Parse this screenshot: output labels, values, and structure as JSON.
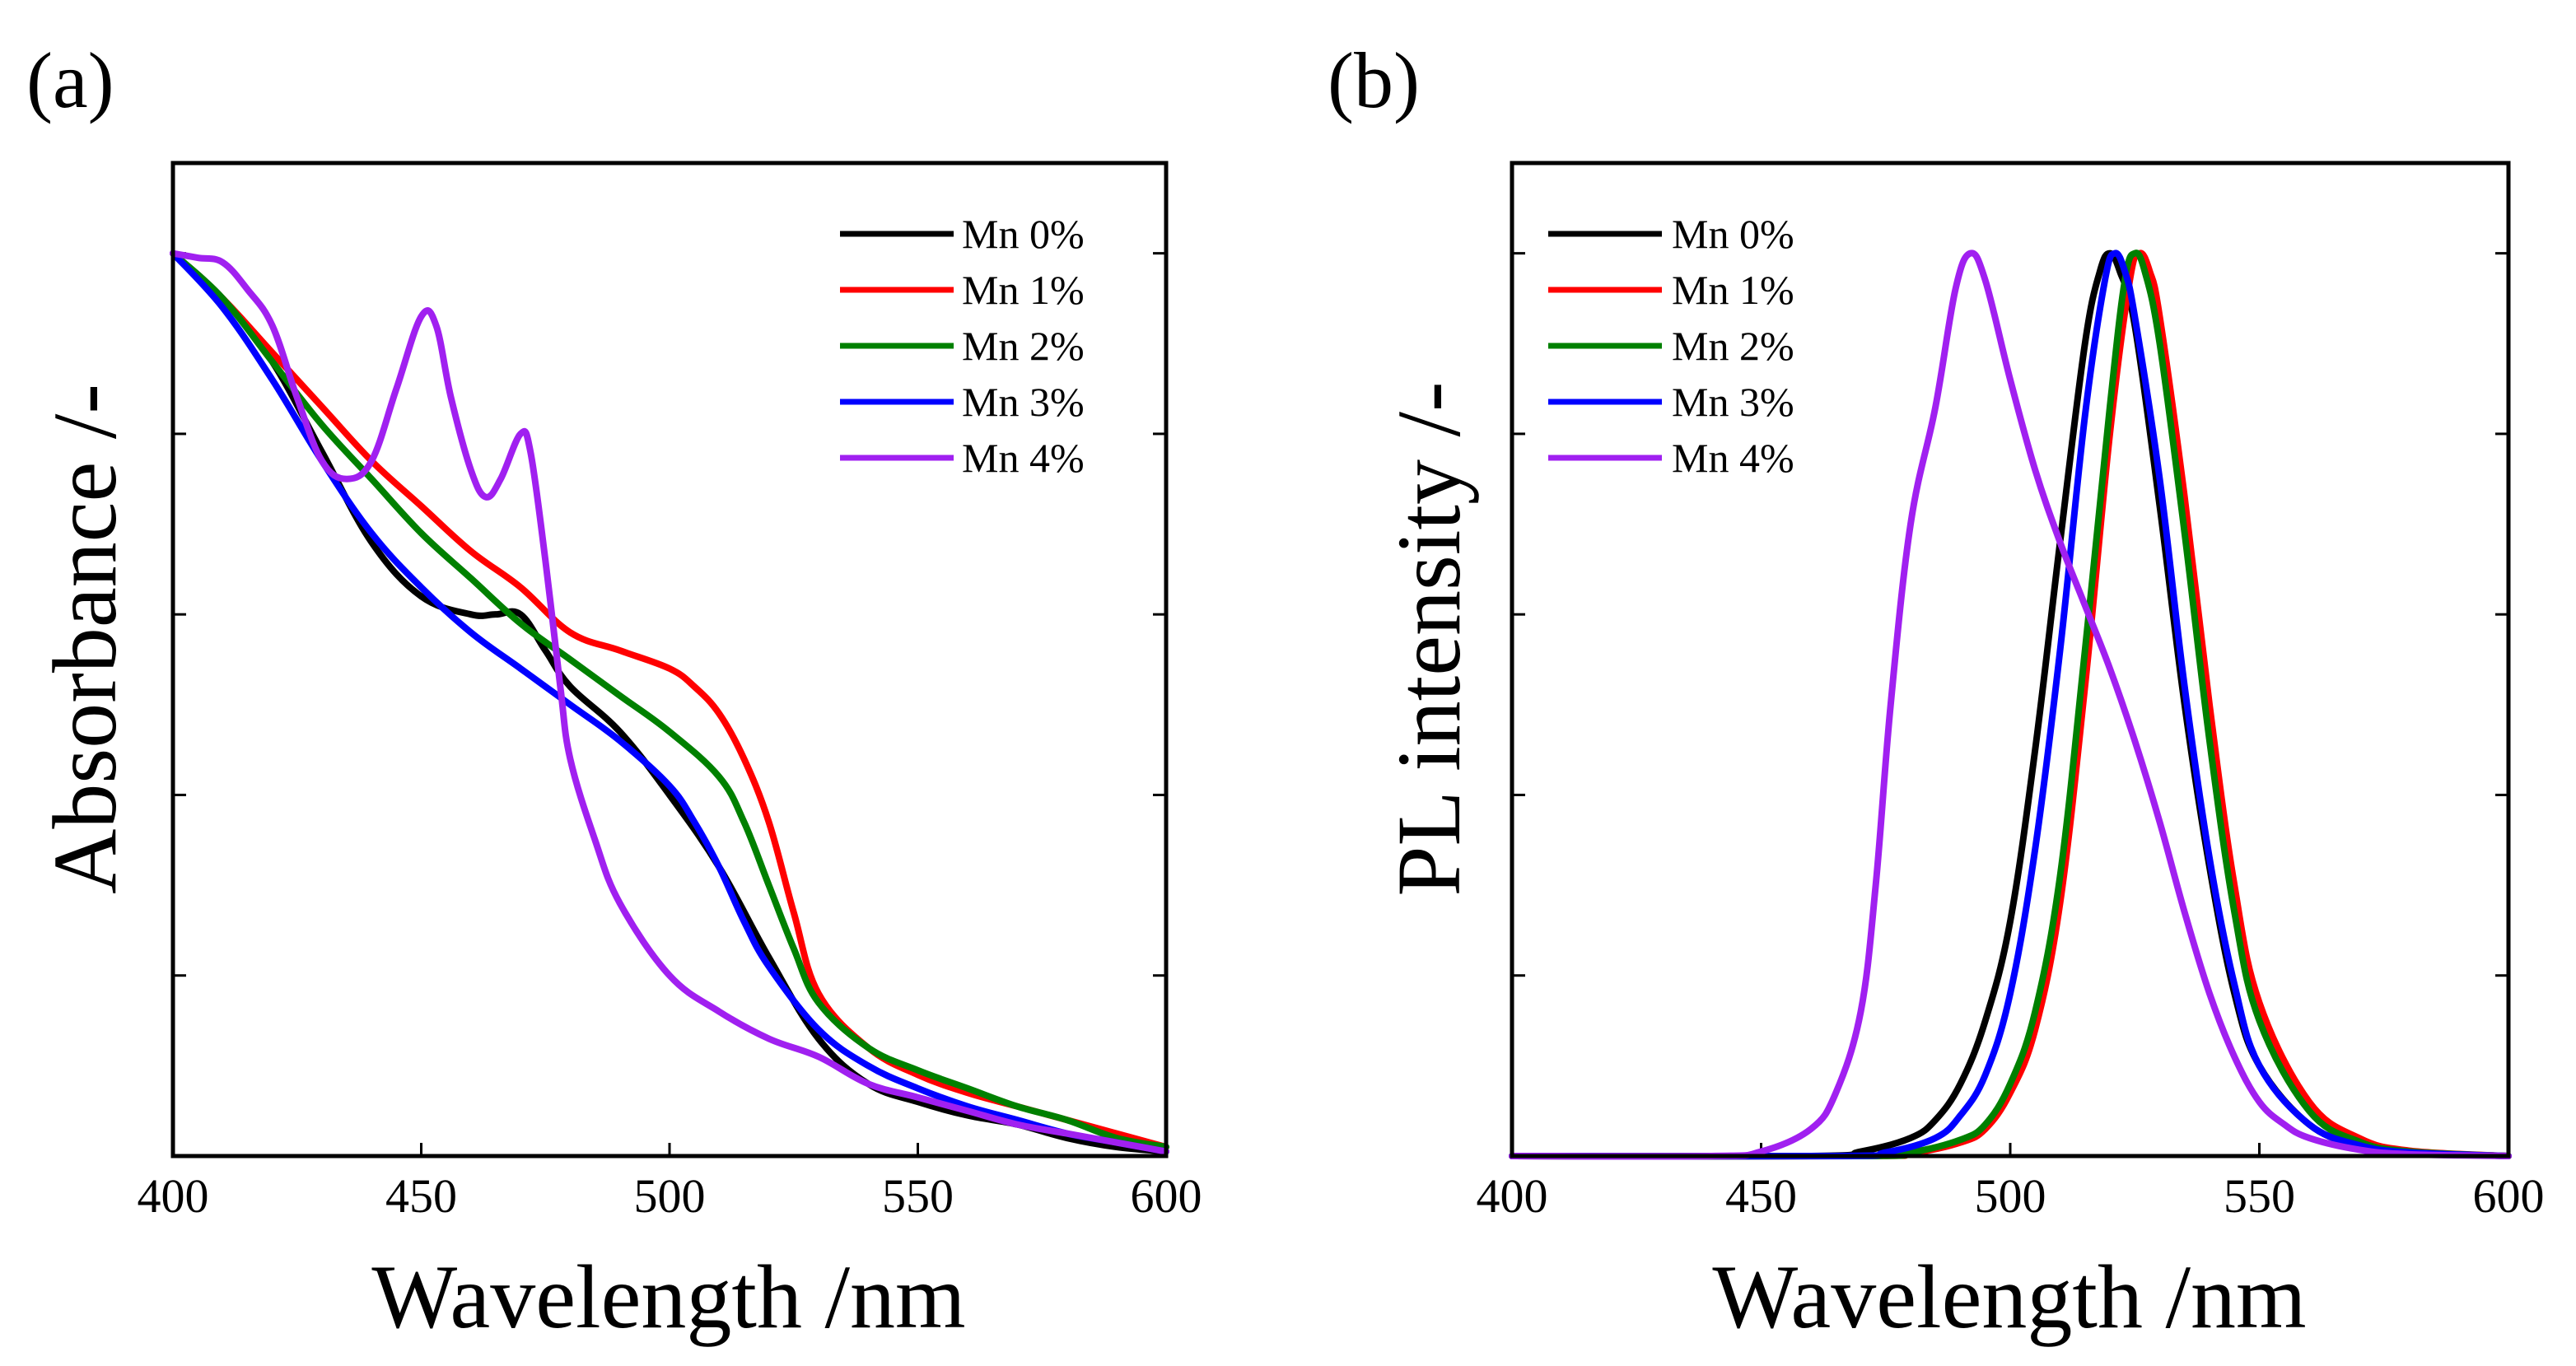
{
  "chart_data": [
    {
      "type": "line",
      "panel_label": "(a)",
      "title": "",
      "xlabel": "Wavelength /nm",
      "ylabel": "Absorbance /-",
      "xlim": [
        400,
        600
      ],
      "ylim": [
        0,
        1.1
      ],
      "xticks": [
        400,
        450,
        500,
        550,
        600
      ],
      "xtick_labels": [
        "400",
        "450",
        "500",
        "550",
        "600"
      ],
      "yticks": [
        0.2,
        0.4,
        0.6,
        0.8,
        1.0
      ],
      "ytick_labels": [],
      "grid": false,
      "legend_position": "top-right",
      "series": [
        {
          "name": "Mn 0%",
          "color": "#000000",
          "x": [
            400,
            410,
            420,
            430,
            440,
            450,
            460,
            465,
            470,
            475,
            480,
            490,
            500,
            510,
            520,
            530,
            540,
            550,
            560,
            570,
            580,
            590,
            600
          ],
          "y": [
            1.0,
            0.95,
            0.88,
            0.78,
            0.68,
            0.62,
            0.6,
            0.6,
            0.6,
            0.56,
            0.52,
            0.47,
            0.4,
            0.32,
            0.22,
            0.13,
            0.08,
            0.06,
            0.045,
            0.035,
            0.02,
            0.01,
            0.005
          ]
        },
        {
          "name": "Mn 1%",
          "color": "#ff0000",
          "x": [
            400,
            410,
            420,
            430,
            440,
            450,
            460,
            470,
            480,
            490,
            500,
            505,
            510,
            515,
            520,
            525,
            530,
            540,
            550,
            560,
            570,
            580,
            590,
            600
          ],
          "y": [
            1.0,
            0.95,
            0.89,
            0.83,
            0.77,
            0.72,
            0.67,
            0.63,
            0.58,
            0.56,
            0.54,
            0.52,
            0.49,
            0.44,
            0.37,
            0.27,
            0.18,
            0.12,
            0.09,
            0.07,
            0.055,
            0.04,
            0.025,
            0.01
          ]
        },
        {
          "name": "Mn 2%",
          "color": "#008000",
          "x": [
            400,
            410,
            420,
            430,
            440,
            450,
            460,
            470,
            480,
            490,
            500,
            510,
            515,
            520,
            525,
            530,
            540,
            550,
            560,
            570,
            580,
            590,
            600
          ],
          "y": [
            1.0,
            0.95,
            0.88,
            0.81,
            0.75,
            0.69,
            0.64,
            0.59,
            0.55,
            0.51,
            0.47,
            0.42,
            0.37,
            0.3,
            0.23,
            0.17,
            0.12,
            0.095,
            0.075,
            0.055,
            0.04,
            0.02,
            0.01
          ]
        },
        {
          "name": "Mn 3%",
          "color": "#0000ff",
          "x": [
            400,
            410,
            420,
            430,
            440,
            450,
            460,
            470,
            480,
            490,
            500,
            505,
            510,
            515,
            520,
            530,
            540,
            550,
            560,
            570,
            580,
            590,
            600
          ],
          "y": [
            1.0,
            0.94,
            0.86,
            0.77,
            0.69,
            0.63,
            0.58,
            0.54,
            0.5,
            0.46,
            0.41,
            0.37,
            0.32,
            0.26,
            0.21,
            0.14,
            0.1,
            0.075,
            0.055,
            0.04,
            0.025,
            0.015,
            0.005
          ]
        },
        {
          "name": "Mn 4%",
          "color": "#a020f0",
          "x": [
            400,
            405,
            410,
            415,
            420,
            425,
            430,
            435,
            440,
            445,
            450,
            453,
            456,
            460,
            463,
            466,
            470,
            472,
            475,
            478,
            480,
            485,
            490,
            500,
            510,
            520,
            530,
            540,
            550,
            560,
            570,
            580,
            590,
            600
          ],
          "y": [
            1.0,
            0.995,
            0.99,
            0.96,
            0.92,
            0.84,
            0.77,
            0.75,
            0.77,
            0.85,
            0.93,
            0.92,
            0.84,
            0.76,
            0.73,
            0.75,
            0.8,
            0.78,
            0.66,
            0.52,
            0.44,
            0.35,
            0.28,
            0.2,
            0.16,
            0.13,
            0.11,
            0.08,
            0.065,
            0.05,
            0.035,
            0.025,
            0.015,
            0.005
          ]
        }
      ]
    },
    {
      "type": "line",
      "panel_label": "(b)",
      "title": "",
      "xlabel": "Wavelength /nm",
      "ylabel": "PL intensity /-",
      "xlim": [
        400,
        600
      ],
      "ylim": [
        0,
        1.1
      ],
      "xticks": [
        400,
        450,
        500,
        550,
        600
      ],
      "xtick_labels": [
        "400",
        "450",
        "500",
        "550",
        "600"
      ],
      "yticks": [
        0.2,
        0.4,
        0.6,
        0.8,
        1.0
      ],
      "ytick_labels": [],
      "grid": false,
      "legend_position": "top-left",
      "series": [
        {
          "name": "Mn 0%",
          "color": "#000000",
          "x": [
            400,
            460,
            470,
            480,
            485,
            490,
            495,
            500,
            505,
            510,
            515,
            518,
            520,
            522,
            525,
            530,
            535,
            540,
            545,
            550,
            560,
            570,
            580,
            600
          ],
          "y": [
            0,
            0,
            0.005,
            0.02,
            0.04,
            0.08,
            0.15,
            0.26,
            0.45,
            0.68,
            0.9,
            0.98,
            1.0,
            0.98,
            0.92,
            0.72,
            0.5,
            0.32,
            0.18,
            0.1,
            0.035,
            0.012,
            0.004,
            0
          ]
        },
        {
          "name": "Mn 1%",
          "color": "#ff0000",
          "x": [
            400,
            470,
            480,
            490,
            495,
            500,
            505,
            510,
            515,
            520,
            524,
            526,
            528,
            530,
            535,
            540,
            545,
            550,
            560,
            570,
            580,
            600
          ],
          "y": [
            0,
            0,
            0.003,
            0.015,
            0.03,
            0.07,
            0.14,
            0.28,
            0.52,
            0.8,
            0.97,
            1.0,
            0.98,
            0.93,
            0.73,
            0.5,
            0.3,
            0.17,
            0.06,
            0.02,
            0.006,
            0
          ]
        },
        {
          "name": "Mn 2%",
          "color": "#008000",
          "x": [
            400,
            470,
            480,
            490,
            495,
            500,
            505,
            510,
            515,
            520,
            523,
            525,
            527,
            530,
            535,
            540,
            545,
            550,
            560,
            570,
            580,
            600
          ],
          "y": [
            0,
            0,
            0.004,
            0.018,
            0.035,
            0.08,
            0.16,
            0.31,
            0.56,
            0.83,
            0.97,
            1.0,
            0.98,
            0.9,
            0.69,
            0.46,
            0.27,
            0.15,
            0.05,
            0.016,
            0.005,
            0
          ]
        },
        {
          "name": "Mn 3%",
          "color": "#0000ff",
          "x": [
            400,
            465,
            475,
            485,
            490,
            495,
            500,
            505,
            510,
            515,
            519,
            521,
            523,
            525,
            530,
            535,
            540,
            545,
            550,
            560,
            570,
            580,
            600
          ],
          "y": [
            0,
            0,
            0.004,
            0.02,
            0.045,
            0.09,
            0.18,
            0.34,
            0.56,
            0.82,
            0.97,
            1.0,
            0.98,
            0.93,
            0.75,
            0.52,
            0.33,
            0.19,
            0.1,
            0.035,
            0.012,
            0.004,
            0
          ]
        },
        {
          "name": "Mn 4%",
          "color": "#a020f0",
          "x": [
            400,
            440,
            450,
            460,
            465,
            470,
            473,
            476,
            480,
            485,
            489,
            492,
            495,
            500,
            505,
            510,
            515,
            520,
            525,
            530,
            535,
            540,
            545,
            550,
            555,
            560,
            570,
            580,
            600
          ],
          "y": [
            0,
            0,
            0.005,
            0.03,
            0.07,
            0.16,
            0.3,
            0.5,
            0.7,
            0.83,
            0.96,
            1.0,
            0.97,
            0.86,
            0.76,
            0.68,
            0.61,
            0.54,
            0.46,
            0.37,
            0.27,
            0.18,
            0.11,
            0.06,
            0.035,
            0.02,
            0.007,
            0.002,
            0
          ]
        }
      ]
    }
  ]
}
